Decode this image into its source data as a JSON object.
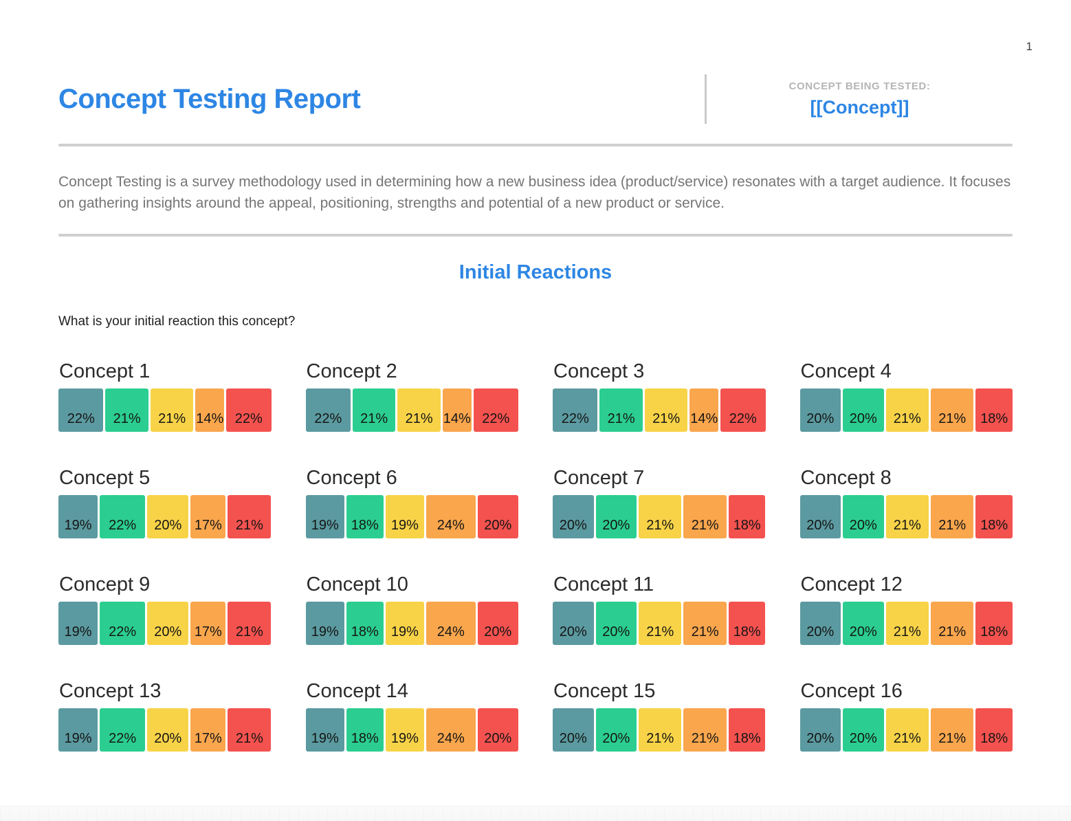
{
  "page": {
    "number": "1"
  },
  "header": {
    "title": "Concept Testing Report",
    "tested_label": "CONCEPT BEING TESTED:",
    "tested_value": "[[Concept]]"
  },
  "intro": "Concept Testing is a survey methodology used in determining how a new business idea (product/service) resonates with a target audience. It focuses on gathering insights around the appeal, positioning, strengths and potential of a new product or service.",
  "section": {
    "title": "Initial Reactions",
    "question": "What is your initial reaction this concept?"
  },
  "colors": {
    "accent_blue": "#2d86e4",
    "label_gray": "#b5b5b5",
    "rule_gray": "#cfcfcf",
    "body_gray": "#757575"
  },
  "chart_data": {
    "type": "bar",
    "subtype": "horizontal-stacked-percentage",
    "segment_order": [
      "teal",
      "green",
      "yellow",
      "orange",
      "red"
    ],
    "segment_colors": [
      "#5B9AA0",
      "#2BCE90",
      "#F8D348",
      "#F9A64D",
      "#F4524F"
    ],
    "unit": "%",
    "concepts": [
      {
        "name": "Concept 1",
        "values": [
          22,
          21,
          21,
          14,
          22
        ]
      },
      {
        "name": "Concept 2",
        "values": [
          22,
          21,
          21,
          14,
          22
        ]
      },
      {
        "name": "Concept 3",
        "values": [
          22,
          21,
          21,
          14,
          22
        ]
      },
      {
        "name": "Concept 4",
        "values": [
          20,
          20,
          21,
          21,
          18
        ]
      },
      {
        "name": "Concept 5",
        "values": [
          19,
          22,
          20,
          17,
          21
        ]
      },
      {
        "name": "Concept 6",
        "values": [
          19,
          18,
          19,
          24,
          20
        ]
      },
      {
        "name": "Concept 7",
        "values": [
          20,
          20,
          21,
          21,
          18
        ]
      },
      {
        "name": "Concept 8",
        "values": [
          20,
          20,
          21,
          21,
          18
        ]
      },
      {
        "name": "Concept 9",
        "values": [
          19,
          22,
          20,
          17,
          21
        ]
      },
      {
        "name": "Concept 10",
        "values": [
          19,
          18,
          19,
          24,
          20
        ]
      },
      {
        "name": "Concept 11",
        "values": [
          20,
          20,
          21,
          21,
          18
        ]
      },
      {
        "name": "Concept 12",
        "values": [
          20,
          20,
          21,
          21,
          18
        ]
      },
      {
        "name": "Concept 13",
        "values": [
          19,
          22,
          20,
          17,
          21
        ]
      },
      {
        "name": "Concept 14",
        "values": [
          19,
          18,
          19,
          24,
          20
        ]
      },
      {
        "name": "Concept 15",
        "values": [
          20,
          20,
          21,
          21,
          18
        ]
      },
      {
        "name": "Concept 16",
        "values": [
          20,
          20,
          21,
          21,
          18
        ]
      }
    ]
  }
}
